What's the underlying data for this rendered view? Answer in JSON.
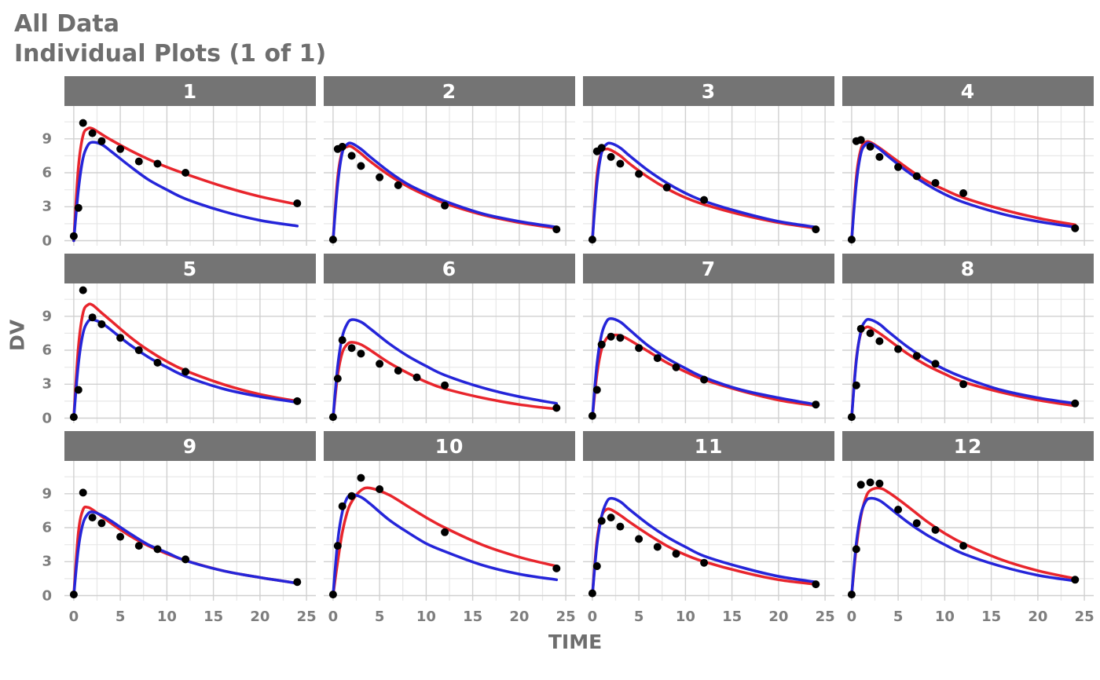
{
  "chart_data": {
    "type": "line",
    "title": "All Data",
    "subtitle": "Individual Plots (1 of 1)",
    "xlabel": "TIME",
    "ylabel": "DV",
    "x_domain": [
      -1,
      26
    ],
    "y_domain": [
      -0.45,
      11.9
    ],
    "x_ticks": [
      0,
      5,
      10,
      15,
      20,
      25
    ],
    "y_ticks": [
      0,
      3,
      6,
      9
    ],
    "x_minor_gridlines": [
      2.5,
      7.5,
      12.5,
      17.5,
      22.5
    ],
    "y_minor_gridlines": [
      1.5,
      4.5,
      7.5,
      10.5
    ],
    "grid": true,
    "legend": "none",
    "facet_layout": {
      "rows": 3,
      "cols": 4
    },
    "colors": {
      "observed": "#000000",
      "red_line": "#e8252c",
      "blue_line": "#2525d9",
      "strip_bg": "#747474",
      "strip_text": "#ffffff",
      "title_text": "#6e6e6e",
      "axis_text": "#7e7e7e",
      "grid_major": "#d0d0d0",
      "grid_minor": "#e7e7e7",
      "panel_bg": "#ffffff"
    },
    "series": [
      {
        "name": "observed-points",
        "type": "scatter",
        "color_key": "observed"
      },
      {
        "name": "red-curve",
        "type": "line",
        "color_key": "red_line"
      },
      {
        "name": "blue-curve",
        "type": "line",
        "color_key": "blue_line"
      }
    ],
    "curve_t": [
      0,
      0.5,
      1,
      1.5,
      2,
      3,
      4,
      6,
      8,
      10,
      12,
      16,
      20,
      24
    ],
    "panels": [
      {
        "label": "1",
        "obs": [
          [
            0,
            0.4
          ],
          [
            0.5,
            2.9
          ],
          [
            1,
            10.4
          ],
          [
            2,
            9.5
          ],
          [
            3,
            8.8
          ],
          [
            5,
            8.1
          ],
          [
            7,
            7.0
          ],
          [
            9,
            6.8
          ],
          [
            12,
            6.0
          ],
          [
            24,
            3.3
          ]
        ],
        "red_y": [
          0,
          6.5,
          9.3,
          9.9,
          9.9,
          9.4,
          8.9,
          8.0,
          7.2,
          6.5,
          5.9,
          4.8,
          3.9,
          3.2
        ],
        "blue_y": [
          0,
          4.5,
          7.3,
          8.4,
          8.7,
          8.5,
          7.9,
          6.6,
          5.4,
          4.5,
          3.7,
          2.6,
          1.8,
          1.3
        ]
      },
      {
        "label": "2",
        "obs": [
          [
            0,
            0.1
          ],
          [
            0.5,
            8.1
          ],
          [
            1,
            8.3
          ],
          [
            2,
            7.5
          ],
          [
            3,
            6.6
          ],
          [
            5,
            5.6
          ],
          [
            7,
            4.9
          ],
          [
            12,
            3.1
          ],
          [
            24,
            1.0
          ]
        ],
        "red_y": [
          0,
          5.6,
          7.9,
          8.3,
          8.3,
          7.7,
          7.0,
          5.8,
          4.8,
          4.0,
          3.3,
          2.3,
          1.6,
          1.1
        ],
        "blue_y": [
          0,
          5.0,
          7.8,
          8.5,
          8.6,
          8.1,
          7.4,
          6.1,
          5.0,
          4.2,
          3.5,
          2.4,
          1.7,
          1.2
        ]
      },
      {
        "label": "3",
        "obs": [
          [
            0,
            0.1
          ],
          [
            0.5,
            7.9
          ],
          [
            1,
            8.2
          ],
          [
            2,
            7.4
          ],
          [
            3,
            6.8
          ],
          [
            5,
            5.9
          ],
          [
            8,
            4.7
          ],
          [
            12,
            3.6
          ],
          [
            24,
            1.0
          ]
        ],
        "red_y": [
          0,
          5.8,
          7.8,
          8.1,
          8.0,
          7.5,
          6.8,
          5.6,
          4.6,
          3.8,
          3.2,
          2.3,
          1.6,
          1.1
        ],
        "blue_y": [
          0,
          5.1,
          7.8,
          8.5,
          8.6,
          8.2,
          7.5,
          6.2,
          5.1,
          4.2,
          3.5,
          2.5,
          1.7,
          1.2
        ]
      },
      {
        "label": "4",
        "obs": [
          [
            0,
            0.1
          ],
          [
            0.5,
            8.8
          ],
          [
            1,
            8.9
          ],
          [
            2,
            8.3
          ],
          [
            3,
            7.4
          ],
          [
            5,
            6.5
          ],
          [
            7,
            5.7
          ],
          [
            9,
            5.1
          ],
          [
            12,
            4.2
          ],
          [
            24,
            1.1
          ]
        ],
        "red_y": [
          0,
          5.6,
          8.1,
          8.7,
          8.7,
          8.2,
          7.6,
          6.4,
          5.3,
          4.5,
          3.8,
          2.8,
          2.0,
          1.4
        ],
        "blue_y": [
          0,
          5.0,
          7.7,
          8.5,
          8.6,
          8.1,
          7.4,
          6.1,
          5.0,
          4.1,
          3.4,
          2.4,
          1.7,
          1.2
        ]
      },
      {
        "label": "5",
        "obs": [
          [
            0,
            0.1
          ],
          [
            0.5,
            2.5
          ],
          [
            1,
            11.3
          ],
          [
            2,
            8.9
          ],
          [
            3,
            8.3
          ],
          [
            5,
            7.1
          ],
          [
            7,
            6.0
          ],
          [
            9,
            4.9
          ],
          [
            12,
            4.1
          ],
          [
            24,
            1.5
          ]
        ],
        "red_y": [
          0,
          6.3,
          9.3,
          10.0,
          10.0,
          9.3,
          8.6,
          7.2,
          6.0,
          5.0,
          4.2,
          3.0,
          2.1,
          1.5
        ],
        "blue_y": [
          0,
          4.8,
          7.5,
          8.5,
          8.7,
          8.4,
          7.8,
          6.5,
          5.4,
          4.5,
          3.7,
          2.6,
          1.9,
          1.4
        ]
      },
      {
        "label": "6",
        "obs": [
          [
            0,
            0.1
          ],
          [
            0.5,
            3.5
          ],
          [
            1,
            6.9
          ],
          [
            2,
            6.2
          ],
          [
            3,
            5.7
          ],
          [
            5,
            4.8
          ],
          [
            7,
            4.2
          ],
          [
            9,
            3.6
          ],
          [
            12,
            2.9
          ],
          [
            24,
            0.9
          ]
        ],
        "red_y": [
          0,
          3.8,
          5.8,
          6.5,
          6.7,
          6.5,
          6.0,
          4.9,
          4.0,
          3.2,
          2.6,
          1.8,
          1.2,
          0.8
        ],
        "blue_y": [
          0,
          4.6,
          7.2,
          8.3,
          8.7,
          8.5,
          7.9,
          6.6,
          5.5,
          4.6,
          3.8,
          2.7,
          1.9,
          1.3
        ]
      },
      {
        "label": "7",
        "obs": [
          [
            0,
            0.2
          ],
          [
            0.5,
            2.5
          ],
          [
            1,
            6.5
          ],
          [
            2,
            7.2
          ],
          [
            3,
            7.1
          ],
          [
            5,
            6.2
          ],
          [
            7,
            5.3
          ],
          [
            9,
            4.5
          ],
          [
            12,
            3.4
          ],
          [
            24,
            1.2
          ]
        ],
        "red_y": [
          0,
          3.9,
          6.1,
          7.0,
          7.3,
          7.3,
          6.9,
          5.9,
          4.9,
          4.1,
          3.4,
          2.4,
          1.6,
          1.1
        ],
        "blue_y": [
          0,
          4.8,
          7.4,
          8.5,
          8.8,
          8.5,
          7.8,
          6.4,
          5.3,
          4.4,
          3.6,
          2.5,
          1.8,
          1.2
        ]
      },
      {
        "label": "8",
        "obs": [
          [
            0,
            0.1
          ],
          [
            0.5,
            2.9
          ],
          [
            1,
            7.9
          ],
          [
            2,
            7.5
          ],
          [
            3,
            6.8
          ],
          [
            5,
            6.1
          ],
          [
            7,
            5.5
          ],
          [
            9,
            4.8
          ],
          [
            12,
            3.0
          ],
          [
            24,
            1.3
          ]
        ],
        "red_y": [
          0,
          5.2,
          7.5,
          8.0,
          8.0,
          7.5,
          6.9,
          5.7,
          4.7,
          3.9,
          3.2,
          2.3,
          1.6,
          1.1
        ],
        "blue_y": [
          0,
          5.0,
          7.7,
          8.6,
          8.7,
          8.3,
          7.6,
          6.3,
          5.2,
          4.3,
          3.6,
          2.5,
          1.8,
          1.3
        ]
      },
      {
        "label": "9",
        "obs": [
          [
            0,
            0.1
          ],
          [
            1,
            9.1
          ],
          [
            2,
            6.9
          ],
          [
            3,
            6.4
          ],
          [
            5,
            5.2
          ],
          [
            7,
            4.4
          ],
          [
            9,
            4.1
          ],
          [
            12,
            3.2
          ],
          [
            24,
            1.2
          ]
        ],
        "red_y": [
          0,
          5.6,
          7.6,
          7.8,
          7.6,
          7.0,
          6.4,
          5.3,
          4.4,
          3.7,
          3.1,
          2.2,
          1.6,
          1.1
        ],
        "blue_y": [
          0,
          4.2,
          6.4,
          7.2,
          7.4,
          7.1,
          6.6,
          5.5,
          4.5,
          3.8,
          3.1,
          2.2,
          1.6,
          1.1
        ]
      },
      {
        "label": "10",
        "obs": [
          [
            0,
            0.1
          ],
          [
            0.5,
            4.4
          ],
          [
            1,
            7.9
          ],
          [
            2,
            8.8
          ],
          [
            3,
            10.4
          ],
          [
            5,
            9.4
          ],
          [
            12,
            5.6
          ],
          [
            24,
            2.4
          ]
        ],
        "red_y": [
          0,
          3.0,
          5.6,
          7.3,
          8.3,
          9.3,
          9.5,
          8.9,
          7.9,
          6.9,
          6.0,
          4.5,
          3.4,
          2.6
        ],
        "blue_y": [
          0,
          4.8,
          7.4,
          8.6,
          8.9,
          8.7,
          8.1,
          6.7,
          5.6,
          4.6,
          3.9,
          2.7,
          1.9,
          1.4
        ]
      },
      {
        "label": "11",
        "obs": [
          [
            0,
            0.2
          ],
          [
            0.5,
            2.6
          ],
          [
            1,
            6.6
          ],
          [
            2,
            6.9
          ],
          [
            3,
            6.1
          ],
          [
            5,
            5.0
          ],
          [
            7,
            4.3
          ],
          [
            9,
            3.7
          ],
          [
            12,
            2.9
          ],
          [
            24,
            1.0
          ]
        ],
        "red_y": [
          0,
          4.9,
          7.0,
          7.6,
          7.6,
          7.1,
          6.5,
          5.4,
          4.4,
          3.6,
          3.0,
          2.1,
          1.4,
          1.0
        ],
        "blue_y": [
          0,
          4.5,
          7.0,
          8.2,
          8.6,
          8.3,
          7.6,
          6.3,
          5.2,
          4.3,
          3.5,
          2.5,
          1.7,
          1.2
        ]
      },
      {
        "label": "12",
        "obs": [
          [
            0,
            0.1
          ],
          [
            0.5,
            4.1
          ],
          [
            1,
            9.8
          ],
          [
            2,
            10.0
          ],
          [
            3,
            9.9
          ],
          [
            5,
            7.6
          ],
          [
            7,
            6.4
          ],
          [
            9,
            5.8
          ],
          [
            12,
            4.4
          ],
          [
            24,
            1.4
          ]
        ],
        "red_y": [
          0,
          4.2,
          7.0,
          8.6,
          9.3,
          9.5,
          9.1,
          7.9,
          6.6,
          5.5,
          4.6,
          3.2,
          2.2,
          1.5
        ],
        "blue_y": [
          0,
          4.6,
          7.2,
          8.3,
          8.6,
          8.4,
          7.8,
          6.5,
          5.4,
          4.5,
          3.7,
          2.6,
          1.8,
          1.3
        ]
      }
    ]
  }
}
